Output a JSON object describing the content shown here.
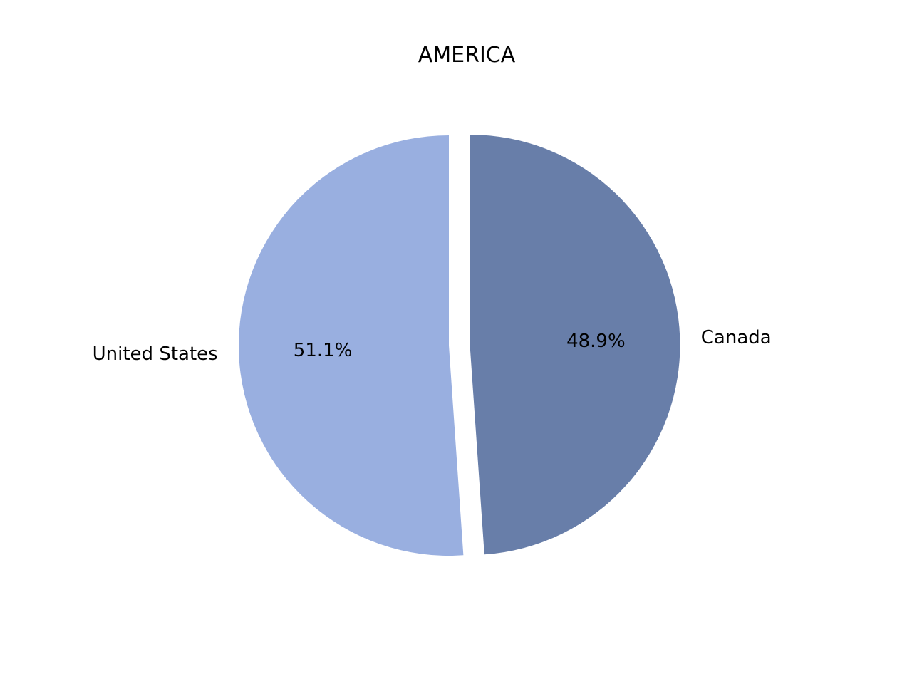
{
  "chart_data": {
    "type": "pie",
    "title": "AMERICA",
    "slices": [
      {
        "label": "United States",
        "value": 51.1,
        "pct_label": "51.1%",
        "color": "#99afe0",
        "explode": 0.0
      },
      {
        "label": "Canada",
        "value": 48.9,
        "pct_label": "48.9%",
        "color": "#687ea9",
        "explode": 0.1
      }
    ],
    "start_angle_deg": 90,
    "direction": "counterclockwise",
    "legend": "none"
  }
}
